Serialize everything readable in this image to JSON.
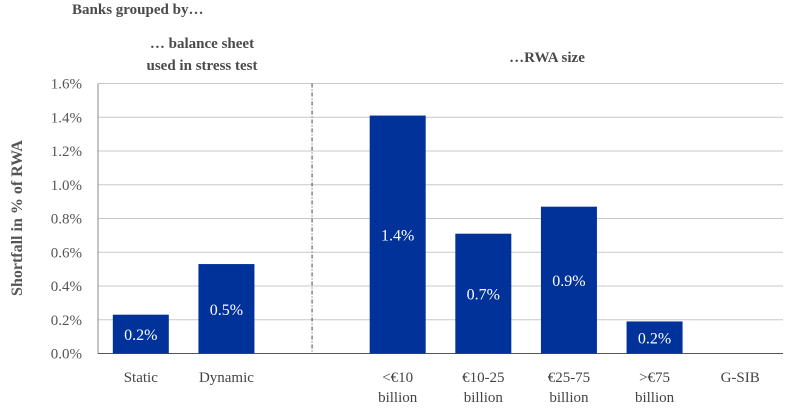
{
  "chart_data": {
    "type": "bar",
    "title": "Banks grouped by…",
    "group_titles": [
      {
        "lines": [
          "… balance sheet",
          "used in stress test"
        ]
      },
      {
        "lines": [
          "…RWA size"
        ]
      }
    ],
    "ylabel": "Shortfall in % of RWA",
    "xlabel": "",
    "ylim": [
      0,
      1.6
    ],
    "yticks": [
      0.0,
      0.2,
      0.4,
      0.6,
      0.8,
      1.0,
      1.2,
      1.4,
      1.6
    ],
    "ytick_labels": [
      "0.0%",
      "0.2%",
      "0.4%",
      "0.6%",
      "0.8%",
      "1.0%",
      "1.2%",
      "1.4%",
      "1.6%"
    ],
    "grid": true,
    "categories": [
      {
        "lines": [
          "Static"
        ],
        "slot": 0
      },
      {
        "lines": [
          "Dynamic"
        ],
        "slot": 1
      },
      {
        "lines": [
          "<€10",
          "billion"
        ],
        "slot": 3
      },
      {
        "lines": [
          "€10-25",
          "billion"
        ],
        "slot": 4
      },
      {
        "lines": [
          "€25-75",
          "billion"
        ],
        "slot": 5
      },
      {
        "lines": [
          ">€75",
          "billion"
        ],
        "slot": 6
      },
      {
        "lines": [
          "G-SIB"
        ],
        "slot": 7
      }
    ],
    "values": [
      0.23,
      0.53,
      1.41,
      0.71,
      0.87,
      0.19,
      0
    ],
    "data_labels": [
      "0.2%",
      "0.5%",
      "1.4%",
      "0.7%",
      "0.9%",
      "0.2%",
      ""
    ],
    "divider_slot": 2,
    "bar_color": "#003299",
    "grid_color": "#c8c8c8"
  }
}
